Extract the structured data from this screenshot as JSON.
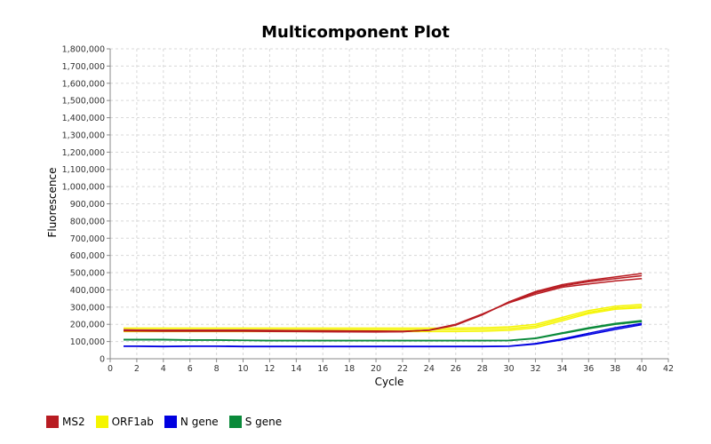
{
  "chart_data": {
    "type": "line",
    "title": "Multicomponent Plot",
    "xlabel": "Cycle",
    "ylabel": "Fluorescence",
    "xlim": [
      0,
      42
    ],
    "ylim": [
      0,
      1800000
    ],
    "xticks": [
      0,
      2,
      4,
      6,
      8,
      10,
      12,
      14,
      16,
      18,
      20,
      22,
      24,
      26,
      28,
      30,
      32,
      34,
      36,
      38,
      40,
      42
    ],
    "yticks": [
      0,
      100000,
      200000,
      300000,
      400000,
      500000,
      600000,
      700000,
      800000,
      900000,
      1000000,
      1100000,
      1200000,
      1300000,
      1400000,
      1500000,
      1600000,
      1700000,
      1800000
    ],
    "ytick_labels": [
      "0",
      "100,000",
      "200,000",
      "300,000",
      "400,000",
      "500,000",
      "600,000",
      "700,000",
      "800,000",
      "900,000",
      "1,000,000",
      "1,100,000",
      "1,200,000",
      "1,300,000",
      "1,400,000",
      "1,500,000",
      "1,600,000",
      "1,700,000",
      "1,800,000"
    ],
    "grid": true,
    "legend_position": "bottom-left",
    "x": [
      1,
      2,
      4,
      6,
      8,
      10,
      12,
      14,
      16,
      18,
      20,
      22,
      24,
      26,
      28,
      30,
      32,
      34,
      36,
      38,
      40
    ],
    "series": [
      {
        "name": "ORF1ab",
        "color": "#f5f500",
        "values": [
          178000,
          178000,
          178000,
          178000,
          178000,
          178000,
          178000,
          178000,
          178000,
          178000,
          178000,
          178000,
          178000,
          178000,
          180000,
          185000,
          200000,
          240000,
          280000,
          305000,
          315000
        ]
      },
      {
        "name": "ORF1ab",
        "color": "#f5f500",
        "values": [
          168000,
          168000,
          168000,
          168000,
          168000,
          168000,
          168000,
          168000,
          168000,
          168000,
          168000,
          168000,
          168000,
          168000,
          170000,
          175000,
          190000,
          230000,
          270000,
          295000,
          305000
        ]
      },
      {
        "name": "ORF1ab",
        "color": "#f5f500",
        "values": [
          158000,
          158000,
          158000,
          158000,
          158000,
          158000,
          158000,
          158000,
          158000,
          158000,
          158000,
          158000,
          158000,
          158000,
          160000,
          165000,
          180000,
          220000,
          262000,
          288000,
          296000
        ]
      },
      {
        "name": "S gene",
        "color": "#0a8a3a",
        "values": [
          112000,
          112000,
          112000,
          110000,
          110000,
          108000,
          106000,
          106000,
          106000,
          106000,
          106000,
          106000,
          106000,
          106000,
          106000,
          107000,
          120000,
          150000,
          180000,
          205000,
          222000
        ]
      },
      {
        "name": "S gene",
        "color": "#0a8a3a",
        "values": [
          110000,
          110000,
          110000,
          108000,
          108000,
          106000,
          104000,
          104000,
          104000,
          104000,
          104000,
          104000,
          104000,
          104000,
          104000,
          105000,
          117000,
          146000,
          175000,
          200000,
          216000
        ]
      },
      {
        "name": "N gene",
        "color": "#0000e0",
        "values": [
          72000,
          72000,
          70000,
          72000,
          72000,
          70000,
          70000,
          70000,
          70000,
          70000,
          70000,
          70000,
          70000,
          70000,
          70000,
          72000,
          85000,
          110000,
          140000,
          170000,
          198000
        ]
      },
      {
        "name": "N gene",
        "color": "#0000e0",
        "values": [
          74000,
          74000,
          72000,
          74000,
          74000,
          72000,
          72000,
          72000,
          72000,
          72000,
          72000,
          72000,
          72000,
          72000,
          72000,
          74000,
          88000,
          115000,
          148000,
          180000,
          205000
        ]
      },
      {
        "name": "MS2",
        "color": "#b81c22",
        "values": [
          168000,
          167000,
          166000,
          166000,
          166000,
          166000,
          165000,
          164000,
          163000,
          162000,
          161000,
          160000,
          165000,
          195000,
          255000,
          330000,
          390000,
          430000,
          455000,
          475000,
          495000
        ]
      },
      {
        "name": "MS2",
        "color": "#b81c22",
        "values": [
          162000,
          161000,
          160000,
          160000,
          160000,
          160000,
          159000,
          158000,
          157000,
          156000,
          155000,
          157000,
          167000,
          200000,
          260000,
          325000,
          375000,
          415000,
          435000,
          452000,
          465000
        ]
      },
      {
        "name": "MS2",
        "color": "#b81c22",
        "values": [
          165000,
          164000,
          163000,
          163000,
          163000,
          163000,
          162000,
          161000,
          160000,
          159000,
          158000,
          158000,
          166000,
          198000,
          258000,
          328000,
          383000,
          423000,
          447000,
          465000,
          482000
        ]
      }
    ],
    "legend": [
      {
        "name": "MS2",
        "color": "#b81c22"
      },
      {
        "name": "ORF1ab",
        "color": "#f5f500"
      },
      {
        "name": "N gene",
        "color": "#0000e0"
      },
      {
        "name": "S gene",
        "color": "#0a8a3a"
      }
    ]
  }
}
